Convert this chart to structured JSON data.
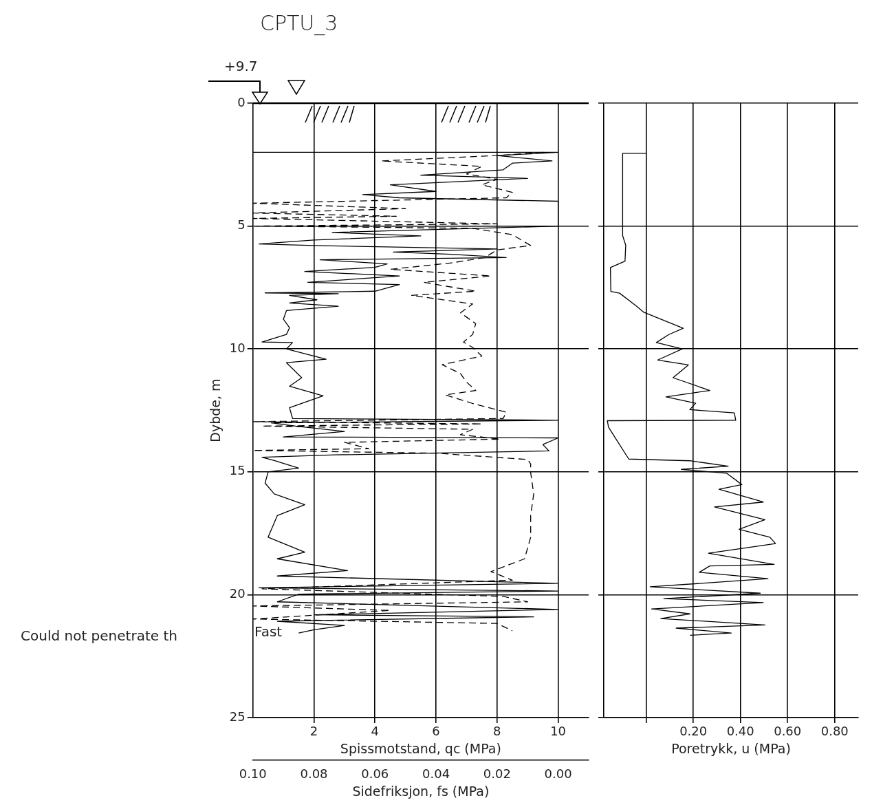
{
  "chart_data": [
    {
      "type": "line",
      "title": "CPTU_3",
      "xlabel": "Spissmotstand, qc (MPa)",
      "x2label": "Sidefriksjon, fs (MPa)",
      "ylabel": "Dybde, m",
      "xlim": [
        0,
        11
      ],
      "xticks": [
        2,
        4,
        6,
        8,
        10
      ],
      "x2lim": [
        0.1,
        -0.01
      ],
      "x2ticks": [
        {
          "value": 0.1,
          "label": "0.10"
        },
        {
          "value": 0.08,
          "label": "0.08"
        },
        {
          "value": 0.06,
          "label": "0.06"
        },
        {
          "value": 0.04,
          "label": "0.04"
        },
        {
          "value": 0.02,
          "label": "0.02"
        },
        {
          "value": 0,
          "label": "0.00"
        }
      ],
      "ylim": [
        25,
        0
      ],
      "yticks": [
        0,
        5,
        10,
        15,
        20,
        25
      ],
      "grid": true,
      "ref_lines": [
        {
          "axis": "y",
          "value": 0
        }
      ],
      "annotations": [
        "+9.7",
        "Could not penetrate th",
        "Fast"
      ],
      "series": [
        {
          "color": "#000000",
          "line_style": "solid",
          "x": [
            0,
            10,
            8.0,
            9.8,
            8.5,
            8.2,
            5.5,
            9.0,
            4.5,
            6.0,
            3.6,
            4.8,
            10,
            10,
            2.6,
            5.5,
            2.0,
            0.2,
            2.0,
            8.0,
            4.6,
            6.5,
            8.3,
            2.2,
            4.4,
            4.0,
            1.7,
            4.8,
            1.8,
            4.8,
            4.0,
            0.4,
            2.8,
            1.2,
            2.1,
            1.2,
            2.8,
            1.1,
            1.0,
            1.2,
            1.1,
            0.3,
            1.3,
            1.1,
            2.4,
            1.1,
            1.6,
            1.2,
            2.3,
            1.2,
            1.3,
            10,
            0.6,
            1.4,
            3.0,
            1.0,
            10,
            9.5,
            9.7,
            2.7,
            0.3,
            0.7,
            1.5,
            0.5,
            0.4,
            0.7,
            1.7,
            0.8,
            0.5,
            1.7,
            0.8,
            3.1,
            0.8,
            10,
            0.2,
            10,
            1.5,
            0.8,
            10,
            2.0,
            9.2,
            0.8,
            3.0,
            2.0,
            1.5
          ],
          "values": [
            2.0,
            2.0,
            2.13,
            2.35,
            2.44,
            2.71,
            2.93,
            3.06,
            3.32,
            3.59,
            3.72,
            3.85,
            3.99,
            5.0,
            5.26,
            5.4,
            5.57,
            5.73,
            5.79,
            5.93,
            6.06,
            6.15,
            6.28,
            6.37,
            6.54,
            6.68,
            6.85,
            7.03,
            7.29,
            7.38,
            7.65,
            7.72,
            7.75,
            7.82,
            8.0,
            8.13,
            8.26,
            8.44,
            8.79,
            9.14,
            9.41,
            9.72,
            9.74,
            10.0,
            10.42,
            10.56,
            11.17,
            11.52,
            11.91,
            12.39,
            12.83,
            12.9,
            13.01,
            13.14,
            13.36,
            13.58,
            13.62,
            13.89,
            14.15,
            14.31,
            14.41,
            14.54,
            14.85,
            15.0,
            15.46,
            15.9,
            16.34,
            16.78,
            17.66,
            18.27,
            18.54,
            19.02,
            19.24,
            19.54,
            19.72,
            19.85,
            19.98,
            20.29,
            20.6,
            20.82,
            20.9,
            21.08,
            21.25,
            21.43,
            21.56
          ]
        },
        {
          "color": "#000000",
          "line_style": "dashed",
          "axis": "x2",
          "x": [
            0.005,
            0.02,
            0.058,
            0.025,
            0.03,
            0.02,
            0.025,
            0.015,
            0.017,
            0.1,
            0.05,
            0.1,
            0.053,
            0.1,
            0.02,
            0.099,
            0.028,
            0.015,
            0.009,
            0.02,
            0.024,
            0.035,
            0.055,
            0.022,
            0.044,
            0.027,
            0.048,
            0.028,
            0.032,
            0.027,
            0.028,
            0.031,
            0.028,
            0.025,
            0.038,
            0.032,
            0.03,
            0.027,
            0.037,
            0.028,
            0.017,
            0.018,
            0.1,
            0.025,
            0.097,
            0.028,
            0.032,
            0.019,
            0.07,
            0.062,
            0.1,
            0.04,
            0.01,
            0.009,
            0.009,
            0.008,
            0.009,
            0.009,
            0.011,
            0.022,
            0.015,
            0.097,
            0.018,
            0.01,
            0.1,
            0.055,
            0.1,
            0.02,
            0.015
          ],
          "values": [
            2.0,
            2.13,
            2.35,
            2.57,
            2.88,
            3.1,
            3.32,
            3.63,
            3.85,
            4.07,
            4.29,
            4.47,
            4.6,
            4.69,
            4.91,
            5.0,
            5.09,
            5.35,
            5.79,
            5.97,
            6.28,
            6.5,
            6.76,
            7.03,
            7.29,
            7.65,
            7.82,
            8.17,
            8.53,
            8.97,
            9.41,
            9.72,
            9.94,
            10.29,
            10.64,
            11.0,
            11.35,
            11.69,
            11.87,
            12.22,
            12.57,
            12.83,
            12.96,
            13.05,
            13.14,
            13.27,
            13.49,
            13.67,
            13.8,
            14.06,
            14.13,
            14.24,
            14.5,
            14.68,
            15.03,
            15.9,
            16.78,
            17.66,
            18.54,
            19.06,
            19.41,
            19.76,
            20.07,
            20.29,
            20.46,
            20.64,
            20.99,
            21.17,
            21.47
          ]
        }
      ]
    },
    {
      "type": "line",
      "xlabel": "Poretrykk, u (MPa)",
      "xlim": [
        -0.18,
        0.9
      ],
      "xticks": [
        {
          "value": 0,
          "label": null
        },
        {
          "value": 0.2,
          "label": "0.20"
        },
        {
          "value": 0.4,
          "label": "0.40"
        },
        {
          "value": 0.6,
          "label": "0.60"
        },
        {
          "value": 0.8,
          "label": "0.80"
        }
      ],
      "ylim": [
        25,
        0
      ],
      "yticks": [
        0,
        5,
        10,
        15,
        20,
        25
      ],
      "tick_labels": "x",
      "grid": true,
      "series": [
        {
          "color": "#000000",
          "line_style": "solid",
          "x": [
            0,
            -0.1,
            -0.1,
            -0.087,
            -0.09,
            -0.152,
            -0.15,
            -0.113,
            -0.042,
            -0.01,
            0.157,
            0.095,
            0.043,
            0.153,
            0.049,
            0.179,
            0.114,
            0.27,
            0.084,
            0.21,
            0.185,
            0.374,
            0.38,
            -0.165,
            -0.16,
            -0.126,
            -0.074,
            0.186,
            0.348,
            0.149,
            0.342,
            0.406,
            0.309,
            0.497,
            0.29,
            0.504,
            0.394,
            0.525,
            0.549,
            0.264,
            0.543,
            0.27,
            0.225,
            0.517,
            0.017,
            0.484,
            0.075,
            0.497,
            0.023,
            0.186,
            0.062,
            0.504,
            0.127,
            0.361,
            0.186
          ],
          "values": [
            2.04,
            2.04,
            5.39,
            5.78,
            6.43,
            6.69,
            7.66,
            7.73,
            8.25,
            8.51,
            9.16,
            9.42,
            9.74,
            10.0,
            10.45,
            10.65,
            11.17,
            11.69,
            11.95,
            12.21,
            12.47,
            12.6,
            12.9,
            12.92,
            13.18,
            13.7,
            14.48,
            14.55,
            14.77,
            14.9,
            15.06,
            15.52,
            15.71,
            16.23,
            16.43,
            16.95,
            17.34,
            17.66,
            17.92,
            18.31,
            18.77,
            18.83,
            19.09,
            19.35,
            19.68,
            19.94,
            20.16,
            20.32,
            20.58,
            20.78,
            20.97,
            21.23,
            21.36,
            21.56,
            21.65
          ]
        }
      ]
    }
  ]
}
